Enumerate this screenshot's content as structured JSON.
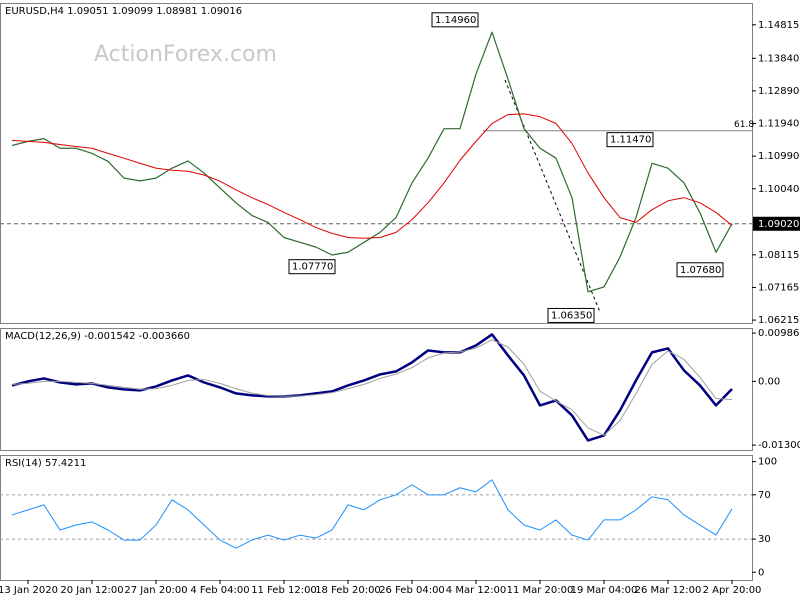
{
  "chart_data": [
    {
      "type": "line",
      "title": "EURUSD,H4 1.09051 1.09099 1.08981 1.09016",
      "watermark": "ActionForex.com",
      "ylim": [
        1.0613,
        1.1545
      ],
      "yticks": [
        1.14815,
        {
          "value": 1.1384,
          "label": "1.13840"
        },
        {
          "value": 1.1289,
          "label": "1.12890"
        },
        {
          "value": 1.1194,
          "label": "1.11940"
        },
        {
          "value": 1.1099,
          "label": "1.10990"
        },
        {
          "value": 1.1004,
          "label": "1.10040"
        },
        1.08115,
        1.07165,
        1.06215
      ],
      "series": [
        {
          "name": "EURUSD",
          "color": "#2e6b2e",
          "width": 1.2,
          "values": [
            1.113,
            1.1142,
            1.115,
            1.1122,
            1.1122,
            1.1107,
            1.1084,
            1.1035,
            1.1027,
            1.1035,
            1.1064,
            1.1085,
            1.105,
            1.1006,
            1.0963,
            1.0926,
            1.0906,
            1.0862,
            1.0848,
            1.0834,
            1.0811,
            1.0819,
            1.0848,
            1.0877,
            1.092,
            1.1021,
            1.1093,
            1.1179,
            1.1179,
            1.1338,
            1.146,
            1.1323,
            1.1179,
            1.1122,
            1.1093,
            1.0978,
            1.0704,
            1.0718,
            1.0805,
            1.092,
            1.1078,
            1.1064,
            1.1021,
            1.0934,
            1.0819,
            1.0902
          ]
        },
        {
          "name": "MA",
          "color": "#e00000",
          "width": 1,
          "values": [
            1.1145,
            1.1142,
            1.1139,
            1.1133,
            1.1127,
            1.1122,
            1.1107,
            1.1093,
            1.1078,
            1.1064,
            1.1058,
            1.1055,
            1.1044,
            1.1026,
            1.1001,
            1.0978,
            1.0958,
            1.0935,
            1.0914,
            1.0891,
            1.0874,
            1.0862,
            1.086,
            1.0862,
            1.0877,
            1.0914,
            1.0963,
            1.1021,
            1.1087,
            1.1142,
            1.1194,
            1.122,
            1.1222,
            1.1214,
            1.1194,
            1.1136,
            1.105,
            1.0978,
            1.092,
            1.0906,
            1.0943,
            1.0969,
            1.0978,
            1.0963,
            1.0935,
            1.0897
          ]
        }
      ],
      "current": {
        "value": 1.0902,
        "label": "1.09020"
      },
      "fib": {
        "level": 61.8,
        "price": 1.1173
      },
      "annotations": [
        {
          "value": 1.1496,
          "label": "1.14960"
        },
        {
          "value": 1.1147,
          "label": "1.11470"
        },
        {
          "value": 1.0777,
          "label": "1.07770"
        },
        {
          "value": 1.0635,
          "label": "1.06350"
        },
        {
          "value": 1.0768,
          "label": "1.07680"
        }
      ]
    },
    {
      "type": "line",
      "title": "MACD(12,26,9) -0.001542 -0.003660",
      "ylim": [
        -0.014,
        0.0109
      ],
      "yticks": [
        0.009862,
        {
          "value": 0,
          "label": "0.00"
        },
        -0.013002
      ],
      "series": [
        {
          "name": "MACD",
          "color": "#000080",
          "width": 2.5,
          "values": [
            -0.00082,
            0,
            0.00061,
            -0.0002,
            -0.00061,
            -0.00041,
            -0.00122,
            -0.00163,
            -0.00184,
            -0.00102,
            0.0002,
            0.00122,
            -0.0002,
            -0.00122,
            -0.00245,
            -0.00286,
            -0.00306,
            -0.00306,
            -0.00286,
            -0.00245,
            -0.00204,
            -0.00082,
            0.0002,
            0.00143,
            0.00204,
            0.00388,
            0.00632,
            0.00592,
            0.00592,
            0.00734,
            0.00959,
            0.0053,
            0.00122,
            -0.0049,
            -0.00388,
            -0.00694,
            -0.01204,
            -0.01102,
            -0.00592,
            0.0002,
            0.00592,
            0.00673,
            0.00224,
            -0.00082,
            -0.0049,
            -0.00154
          ]
        },
        {
          "name": "Signal",
          "color": "#a0a0a0",
          "width": 1,
          "values": [
            -0.0006,
            -0.0004,
            0,
            0,
            -0.0002,
            -0.0004,
            -0.0008,
            -0.0012,
            -0.0016,
            -0.0015,
            -0.0008,
            0.0002,
            0.0004,
            -0.0004,
            -0.0015,
            -0.0024,
            -0.0029,
            -0.003,
            -0.003,
            -0.0027,
            -0.0023,
            -0.0015,
            -0.0006,
            0.0006,
            0.0015,
            0.0028,
            0.0048,
            0.0058,
            0.006,
            0.0068,
            0.0085,
            0.007,
            0.0035,
            -0.002,
            -0.004,
            -0.0058,
            -0.0095,
            -0.011,
            -0.008,
            -0.0025,
            0.0035,
            0.0062,
            0.0045,
            0.0008,
            -0.0035,
            -0.0037
          ]
        }
      ]
    },
    {
      "type": "line",
      "title": "RSI(14) 57.4211",
      "ylim": [
        -7,
        106
      ],
      "yticks": [
        100,
        70,
        30,
        0
      ],
      "levels": [
        70,
        30
      ],
      "categories": [
        null,
        "13 Jan 2020",
        null,
        null,
        null,
        "20 Jan 12:00",
        null,
        null,
        null,
        "27 Jan 20:00",
        null,
        null,
        null,
        "4 Feb 04:00",
        null,
        null,
        null,
        "11 Feb 12:00",
        null,
        null,
        null,
        "18 Feb 20:00",
        null,
        null,
        null,
        "26 Feb 04:00",
        null,
        null,
        null,
        "4 Mar 12:00",
        null,
        null,
        null,
        "11 Mar 20:00",
        null,
        null,
        null,
        "19 Mar 04:00",
        null,
        null,
        null,
        "26 Mar 12:00",
        null,
        null,
        null,
        "2 Apr 20:00"
      ],
      "series": [
        {
          "name": "RSI",
          "color": "#1e90ff",
          "width": 1,
          "values": [
            51.8,
            56.4,
            60.9,
            38.2,
            42.7,
            45.5,
            38.2,
            29.1,
            29.1,
            42.7,
            65.5,
            56.4,
            42.7,
            29.1,
            21.8,
            29.1,
            33.6,
            29.1,
            33.6,
            30.9,
            38.2,
            60.9,
            56.4,
            65.5,
            70.0,
            79.1,
            70.0,
            70.0,
            76.4,
            72.7,
            83.6,
            56.4,
            42.7,
            38.2,
            47.3,
            33.6,
            29.1,
            47.3,
            47.3,
            56.4,
            68.2,
            65.5,
            51.8,
            42.7,
            33.6,
            57.4
          ]
        }
      ]
    }
  ]
}
